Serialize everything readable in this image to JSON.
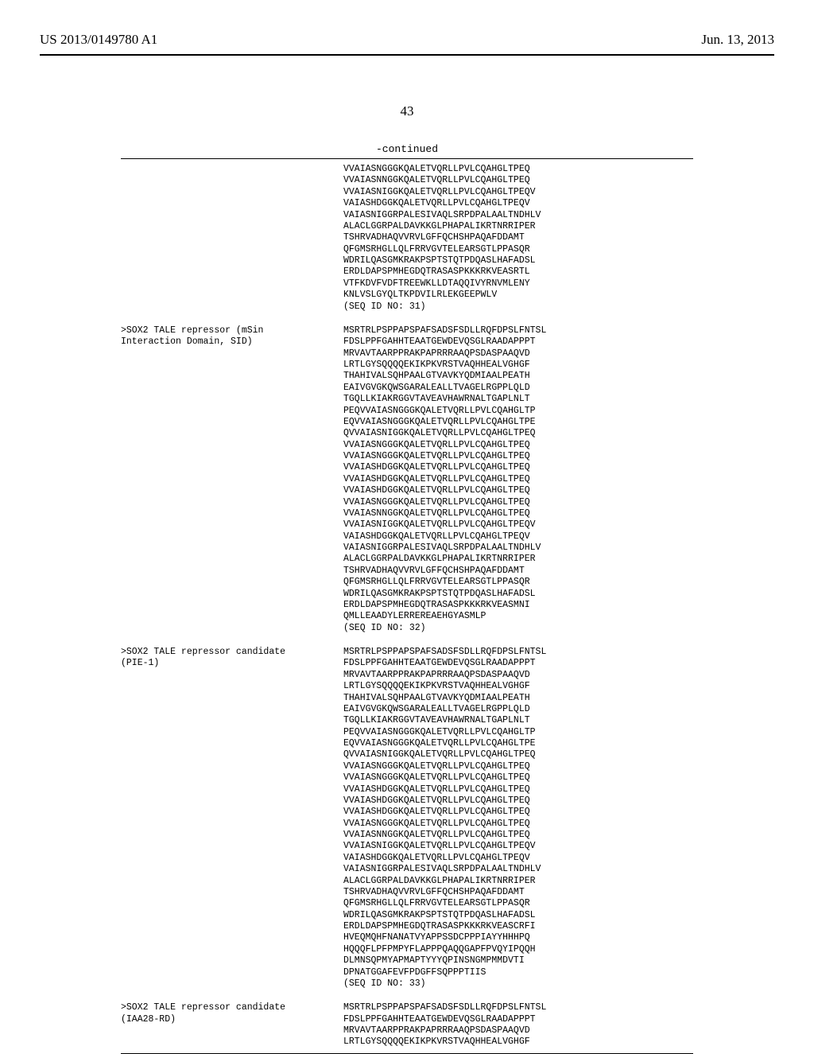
{
  "header": {
    "pub_number": "US 2013/0149780 A1",
    "pub_date": "Jun. 13, 2013",
    "page_number": "43",
    "continued_label": "-continued"
  },
  "entries": [
    {
      "label": "",
      "lines": [
        "VVAIASNGGGKQALETVQRLLPVLCQAHGLTPEQ",
        "VVAIASNNGGKQALETVQRLLPVLCQAHGLTPEQ",
        "VVAIASNIGGKQALETVQRLLPVLCQAHGLTPEQV",
        "VAIASHDGGKQALETVQRLLPVLCQAHGLTPEQV",
        "VAIASNIGGRPALESIVAQLSRPDPALAALTNDHLV",
        "ALACLGGRPALDAVKKGLPHAPALIKRTNRRIPER",
        "TSHRVADHAQVVRVLGFFQCHSHPAQAFDDAMT",
        "QFGMSRHGLLQLFRRVGVTELEARSGTLPPASQR",
        "WDRILQASGMKRAKPSPTSTQTPDQASLHAFADSL",
        "ERDLDAPSPMHEGDQTRASASPKKKRKVEASRTL",
        "VTFKDVFVDFTREEWKLLDTAQQIVYRNVMLENY",
        "KNLVSLGYQLTKPDVILRLEKGEEPWLV",
        "(SEQ ID NO: 31)"
      ]
    },
    {
      "label": ">SOX2 TALE repressor (mSin\nInteraction Domain, SID)",
      "lines": [
        "MSRTRLPSPPAPSPAFSADSFSDLLRQFDPSLFNTSL",
        "FDSLPPFGAHHTEAATGEWDEVQSGLRAADAPPPT",
        "MRVAVTAARPPRAKPAPRRRAAQPSDASPAAQVD",
        "LRTLGYSQQQQEKIKPKVRSTVAQHHEALVGHGF",
        "THAHIVALSQHPAALGTVAVKYQDMIAALPEATH",
        "EAIVGVGKQWSGARALEALLTVAGELRGPPLQLD",
        "TGQLLKIAKRGGVTAVEAVHAWRNALTGAPLNLT",
        "PEQVVAIASNGGGKQALETVQRLLPVLCQAHGLTP",
        "EQVVAIASNGGGKQALETVQRLLPVLCQAHGLTPE",
        "QVVAIASNIGGKQALETVQRLLPVLCQAHGLTPEQ",
        "VVAIASNGGGKQALETVQRLLPVLCQAHGLTPEQ",
        "VVAIASNGGGKQALETVQRLLPVLCQAHGLTPEQ",
        "VVAIASHDGGKQALETVQRLLPVLCQAHGLTPEQ",
        "VVAIASHDGGKQALETVQRLLPVLCQAHGLTPEQ",
        "VVAIASHDGGKQALETVQRLLPVLCQAHGLTPEQ",
        "VVAIASNGGGKQALETVQRLLPVLCQAHGLTPEQ",
        "VVAIASNNGGKQALETVQRLLPVLCQAHGLTPEQ",
        "VVAIASNIGGKQALETVQRLLPVLCQAHGLTPEQV",
        "VAIASHDGGKQALETVQRLLPVLCQAHGLTPEQV",
        "VAIASNIGGRPALESIVAQLSRPDPALAALTNDHLV",
        "ALACLGGRPALDAVKKGLPHAPALIKRTNRRIPER",
        "TSHRVADHAQVVRVLGFFQCHSHPAQAFDDAMT",
        "QFGMSRHGLLQLFRRVGVTELEARSGTLPPASQR",
        "WDRILQASGMKRAKPSPTSTQTPDQASLHAFADSL",
        "ERDLDAPSPMHEGDQTRASASPKKKRKVEASMNI",
        "QMLLEAADYLERREREAEHGYASMLP",
        "(SEQ ID NO: 32)"
      ]
    },
    {
      "label": ">SOX2 TALE repressor candidate\n(PIE-1)",
      "lines": [
        "MSRTRLPSPPAPSPAFSADSFSDLLRQFDPSLFNTSL",
        "FDSLPPFGAHHTEAATGEWDEVQSGLRAADAPPPT",
        "MRVAVTAARPPRAKPAPRRRAAQPSDASPAAQVD",
        "LRTLGYSQQQQEKIKPKVRSTVAQHHEALVGHGF",
        "THAHIVALSQHPAALGTVAVKYQDMIAALPEATH",
        "EAIVGVGKQWSGARALEALLTVAGELRGPPLQLD",
        "TGQLLKIAKRGGVTAVEAVHAWRNALTGAPLNLT",
        "PEQVVAIASNGGGKQALETVQRLLPVLCQAHGLTP",
        "EQVVAIASNGGGKQALETVQRLLPVLCQAHGLTPE",
        "QVVAIASNIGGKQALETVQRLLPVLCQAHGLTPEQ",
        "VVAIASNGGGKQALETVQRLLPVLCQAHGLTPEQ",
        "VVAIASNGGGKQALETVQRLLPVLCQAHGLTPEQ",
        "VVAIASHDGGKQALETVQRLLPVLCQAHGLTPEQ",
        "VVAIASHDGGKQALETVQRLLPVLCQAHGLTPEQ",
        "VVAIASHDGGKQALETVQRLLPVLCQAHGLTPEQ",
        "VVAIASNGGGKQALETVQRLLPVLCQAHGLTPEQ",
        "VVAIASNNGGKQALETVQRLLPVLCQAHGLTPEQ",
        "VVAIASNIGGKQALETVQRLLPVLCQAHGLTPEQV",
        "VAIASHDGGKQALETVQRLLPVLCQAHGLTPEQV",
        "VAIASNIGGRPALESIVAQLSRPDPALAALTNDHLV",
        "ALACLGGRPALDAVKKGLPHAPALIKRTNRRIPER",
        "TSHRVADHAQVVRVLGFFQCHSHPAQAFDDAMT",
        "QFGMSRHGLLQLFRRVGVTELEARSGTLPPASQR",
        "WDRILQASGMKRAKPSPTSTQTPDQASLHAFADSL",
        "ERDLDAPSPMHEGDQTRASASPKKKRKVEASCRFI",
        "HVEQMQHFNANATVYAPPSSDCPPPIAYYHHHPQ",
        "HQQQFLPFPMPYFLAPPPQAQQGAPFPVQYIPQQH",
        "DLMNSQPMYAPMAPTYYYQPINSNGMPMMDVTI",
        "DPNATGGAFEVFPDGFFSQPPPTIIS",
        "(SEQ ID NO: 33)"
      ]
    },
    {
      "label": ">SOX2 TALE repressor candidate\n(IAA28-RD)",
      "lines": [
        "MSRTRLPSPPAPSPAFSADSFSDLLRQFDPSLFNTSL",
        "FDSLPPFGAHHTEAATGEWDEVQSGLRAADAPPPT",
        "MRVAVTAARPPRAKPAPRRRAAQPSDASPAAQVD",
        "LRTLGYSQQQQEKIKPKVRSTVAQHHEALVGHGF"
      ]
    }
  ]
}
